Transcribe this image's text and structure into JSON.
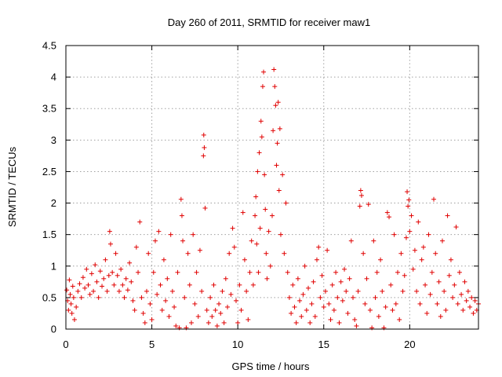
{
  "chart_data": {
    "type": "scatter",
    "title": "Day 260 of 2011, SRMTID for receiver maw1",
    "xlabel": "GPS time / hours",
    "ylabel": "SRMTID / TECUs",
    "xlim": [
      0,
      24
    ],
    "ylim": [
      0,
      4.5
    ],
    "xticks": [
      "0",
      "5",
      "10",
      "15",
      "20"
    ],
    "yticks": [
      "0",
      "0.5",
      "1",
      "1.5",
      "2",
      "2.5",
      "3",
      "3.5",
      "4",
      "4.5"
    ],
    "grid": true,
    "marker": "plus",
    "color": "#e00000",
    "series": [
      {
        "points": [
          [
            0.05,
            0.62
          ],
          [
            0.1,
            0.45
          ],
          [
            0.15,
            0.3
          ],
          [
            0.2,
            0.78
          ],
          [
            0.25,
            0.55
          ],
          [
            0.3,
            0.4
          ],
          [
            0.35,
            0.25
          ],
          [
            0.4,
            0.68
          ],
          [
            0.45,
            0.5
          ],
          [
            0.5,
            0.15
          ],
          [
            0.6,
            0.35
          ],
          [
            0.7,
            0.6
          ],
          [
            0.8,
            0.72
          ],
          [
            0.9,
            0.5
          ],
          [
            1.0,
            0.82
          ],
          [
            1.1,
            0.65
          ],
          [
            1.2,
            0.95
          ],
          [
            1.3,
            0.7
          ],
          [
            1.4,
            0.55
          ],
          [
            1.5,
            0.88
          ],
          [
            1.6,
            0.6
          ],
          [
            1.7,
            1.02
          ],
          [
            1.8,
            0.75
          ],
          [
            1.9,
            0.5
          ],
          [
            2.0,
            0.92
          ],
          [
            2.1,
            0.68
          ],
          [
            2.2,
            0.8
          ],
          [
            2.3,
            1.1
          ],
          [
            2.4,
            0.6
          ],
          [
            2.5,
            0.85
          ],
          [
            2.55,
            1.55
          ],
          [
            2.6,
            1.35
          ],
          [
            2.7,
            0.9
          ],
          [
            2.8,
            0.7
          ],
          [
            2.9,
            1.2
          ],
          [
            3.0,
            0.85
          ],
          [
            3.1,
            0.6
          ],
          [
            3.2,
            0.95
          ],
          [
            3.3,
            0.7
          ],
          [
            3.4,
            0.5
          ],
          [
            3.5,
            0.8
          ],
          [
            3.6,
            0.62
          ],
          [
            3.7,
            1.05
          ],
          [
            3.8,
            0.75
          ],
          [
            3.9,
            0.45
          ],
          [
            4.0,
            0.3
          ],
          [
            4.1,
            1.3
          ],
          [
            4.2,
            0.9
          ],
          [
            4.3,
            1.7
          ],
          [
            4.4,
            0.5
          ],
          [
            4.5,
            0.25
          ],
          [
            4.6,
            0.1
          ],
          [
            4.7,
            0.6
          ],
          [
            4.8,
            1.2
          ],
          [
            4.9,
            0.4
          ],
          [
            5.0,
            0.15
          ],
          [
            5.1,
            0.9
          ],
          [
            5.2,
            1.4
          ],
          [
            5.3,
            0.55
          ],
          [
            5.4,
            1.55
          ],
          [
            5.5,
            0.7
          ],
          [
            5.6,
            0.3
          ],
          [
            5.7,
            1.1
          ],
          [
            5.8,
            0.45
          ],
          [
            5.9,
            0.8
          ],
          [
            6.0,
            0.2
          ],
          [
            6.1,
            1.5
          ],
          [
            6.2,
            0.6
          ],
          [
            6.3,
            0.35
          ],
          [
            6.4,
            0.05
          ],
          [
            6.5,
            0.9
          ],
          [
            6.6,
            0.02
          ],
          [
            6.7,
            2.06
          ],
          [
            6.75,
            1.8
          ],
          [
            6.8,
            1.4
          ],
          [
            6.9,
            0.5
          ],
          [
            7.0,
            0.02
          ],
          [
            7.1,
            1.2
          ],
          [
            7.2,
            0.7
          ],
          [
            7.3,
            0.1
          ],
          [
            7.4,
            1.5
          ],
          [
            7.5,
            0.4
          ],
          [
            7.6,
            0.9
          ],
          [
            7.7,
            0.2
          ],
          [
            7.8,
            1.25
          ],
          [
            7.9,
            0.6
          ],
          [
            8.0,
            2.75
          ],
          [
            8.02,
            3.08
          ],
          [
            8.05,
            2.88
          ],
          [
            8.1,
            1.92
          ],
          [
            8.2,
            0.3
          ],
          [
            8.3,
            0.1
          ],
          [
            8.4,
            0.5
          ],
          [
            8.5,
            0.2
          ],
          [
            8.6,
            0.7
          ],
          [
            8.7,
            0.3
          ],
          [
            8.8,
            0.05
          ],
          [
            8.9,
            0.4
          ],
          [
            9.0,
            0.25
          ],
          [
            9.1,
            0.6
          ],
          [
            9.2,
            0.1
          ],
          [
            9.3,
            0.8
          ],
          [
            9.4,
            0.35
          ],
          [
            9.5,
            1.2
          ],
          [
            9.6,
            0.55
          ],
          [
            9.7,
            1.6
          ],
          [
            9.8,
            1.3
          ],
          [
            9.9,
            0.45
          ],
          [
            10.0,
            0.1
          ],
          [
            10.1,
            0.7
          ],
          [
            10.2,
            0.3
          ],
          [
            10.3,
            1.85
          ],
          [
            10.4,
            1.1
          ],
          [
            10.5,
            0.6
          ],
          [
            10.6,
            0.15
          ],
          [
            10.7,
            0.9
          ],
          [
            10.8,
            1.4
          ],
          [
            10.9,
            0.7
          ],
          [
            11.0,
            1.8
          ],
          [
            11.05,
            2.1
          ],
          [
            11.1,
            1.35
          ],
          [
            11.15,
            2.5
          ],
          [
            11.2,
            0.9
          ],
          [
            11.25,
            2.8
          ],
          [
            11.3,
            1.6
          ],
          [
            11.35,
            3.3
          ],
          [
            11.4,
            3.05
          ],
          [
            11.45,
            3.85
          ],
          [
            11.5,
            4.08
          ],
          [
            11.55,
            2.45
          ],
          [
            11.6,
            1.9
          ],
          [
            11.65,
            1.2
          ],
          [
            11.7,
            0.8
          ],
          [
            11.8,
            1.55
          ],
          [
            11.9,
            1.0
          ],
          [
            12.0,
            1.8
          ],
          [
            12.05,
            3.15
          ],
          [
            12.1,
            4.12
          ],
          [
            12.15,
            3.85
          ],
          [
            12.2,
            3.55
          ],
          [
            12.25,
            2.6
          ],
          [
            12.3,
            2.95
          ],
          [
            12.35,
            3.6
          ],
          [
            12.4,
            2.2
          ],
          [
            12.45,
            3.18
          ],
          [
            12.5,
            1.5
          ],
          [
            12.6,
            2.45
          ],
          [
            12.7,
            1.2
          ],
          [
            12.8,
            2.0
          ],
          [
            12.9,
            0.9
          ],
          [
            13.0,
            0.5
          ],
          [
            13.1,
            0.25
          ],
          [
            13.2,
            0.7
          ],
          [
            13.3,
            0.35
          ],
          [
            13.4,
            0.1
          ],
          [
            13.5,
            0.8
          ],
          [
            13.6,
            0.45
          ],
          [
            13.7,
            0.2
          ],
          [
            13.8,
            0.55
          ],
          [
            13.9,
            1.0
          ],
          [
            14.0,
            0.3
          ],
          [
            14.1,
            0.65
          ],
          [
            14.2,
            0.1
          ],
          [
            14.3,
            0.4
          ],
          [
            14.4,
            0.75
          ],
          [
            14.5,
            0.2
          ],
          [
            14.6,
            1.1
          ],
          [
            14.7,
            1.3
          ],
          [
            14.8,
            0.5
          ],
          [
            14.9,
            0.85
          ],
          [
            15.0,
            0.35
          ],
          [
            15.1,
            0.6
          ],
          [
            15.2,
            1.25
          ],
          [
            15.3,
            0.4
          ],
          [
            15.4,
            0.15
          ],
          [
            15.5,
            0.7
          ],
          [
            15.6,
            0.3
          ],
          [
            15.7,
            0.9
          ],
          [
            15.8,
            0.5
          ],
          [
            15.9,
            0.1
          ],
          [
            16.0,
            0.75
          ],
          [
            16.1,
            0.45
          ],
          [
            16.2,
            0.95
          ],
          [
            16.3,
            0.6
          ],
          [
            16.4,
            0.25
          ],
          [
            16.5,
            0.8
          ],
          [
            16.6,
            1.4
          ],
          [
            16.7,
            0.5
          ],
          [
            16.8,
            0.15
          ],
          [
            16.9,
            0.05
          ],
          [
            17.0,
            0.6
          ],
          [
            17.1,
            1.95
          ],
          [
            17.15,
            2.2
          ],
          [
            17.2,
            2.12
          ],
          [
            17.3,
            1.2
          ],
          [
            17.4,
            0.4
          ],
          [
            17.5,
            0.8
          ],
          [
            17.6,
            1.98
          ],
          [
            17.7,
            0.3
          ],
          [
            17.8,
            0.02
          ],
          [
            17.9,
            1.4
          ],
          [
            18.0,
            0.5
          ],
          [
            18.1,
            0.9
          ],
          [
            18.2,
            0.2
          ],
          [
            18.3,
            1.1
          ],
          [
            18.4,
            0.6
          ],
          [
            18.5,
            0.02
          ],
          [
            18.6,
            0.35
          ],
          [
            18.7,
            1.85
          ],
          [
            18.8,
            1.78
          ],
          [
            18.9,
            0.7
          ],
          [
            19.0,
            0.3
          ],
          [
            19.1,
            1.5
          ],
          [
            19.2,
            0.4
          ],
          [
            19.3,
            0.9
          ],
          [
            19.4,
            0.15
          ],
          [
            19.5,
            1.2
          ],
          [
            19.6,
            0.6
          ],
          [
            19.7,
            0.85
          ],
          [
            19.8,
            1.45
          ],
          [
            19.85,
            2.18
          ],
          [
            19.9,
            1.95
          ],
          [
            19.95,
            2.05
          ],
          [
            20.0,
            1.55
          ],
          [
            20.1,
            1.8
          ],
          [
            20.2,
            0.95
          ],
          [
            20.3,
            1.25
          ],
          [
            20.4,
            0.6
          ],
          [
            20.5,
            1.7
          ],
          [
            20.6,
            0.4
          ],
          [
            20.7,
            1.1
          ],
          [
            20.8,
            1.3
          ],
          [
            20.9,
            0.7
          ],
          [
            21.0,
            0.25
          ],
          [
            21.1,
            1.5
          ],
          [
            21.2,
            0.55
          ],
          [
            21.3,
            0.9
          ],
          [
            21.4,
            2.06
          ],
          [
            21.5,
            1.2
          ],
          [
            21.6,
            0.4
          ],
          [
            21.7,
            0.75
          ],
          [
            21.8,
            0.2
          ],
          [
            21.9,
            1.4
          ],
          [
            22.0,
            0.6
          ],
          [
            22.1,
            0.3
          ],
          [
            22.2,
            1.8
          ],
          [
            22.3,
            0.85
          ],
          [
            22.4,
            1.1
          ],
          [
            22.5,
            0.5
          ],
          [
            22.6,
            0.7
          ],
          [
            22.7,
            1.62
          ],
          [
            22.8,
            0.4
          ],
          [
            22.9,
            0.9
          ],
          [
            23.0,
            0.55
          ],
          [
            23.1,
            0.3
          ],
          [
            23.2,
            0.75
          ],
          [
            23.3,
            0.45
          ],
          [
            23.4,
            0.6
          ],
          [
            23.5,
            0.35
          ],
          [
            23.6,
            0.5
          ],
          [
            23.7,
            0.25
          ],
          [
            23.8,
            0.45
          ],
          [
            23.9,
            0.3
          ],
          [
            24.0,
            0.4
          ]
        ]
      }
    ]
  }
}
